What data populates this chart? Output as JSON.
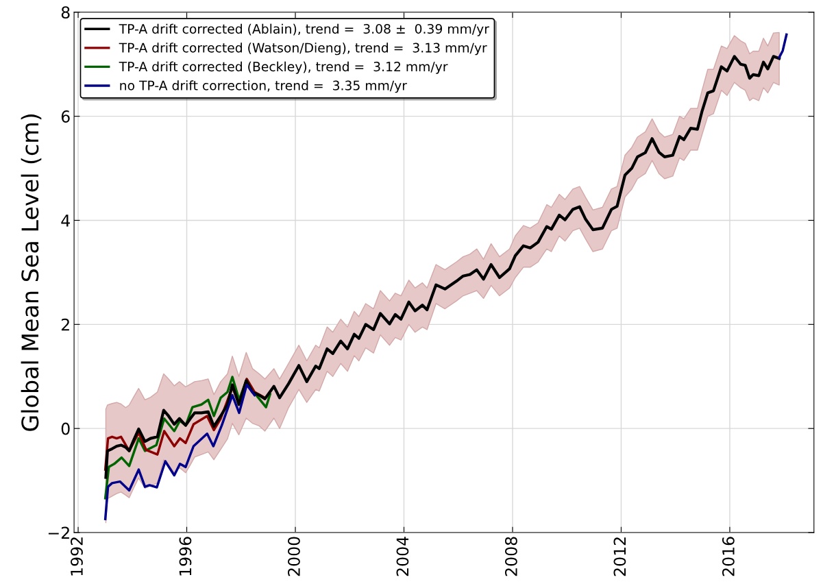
{
  "chart_data": {
    "type": "line",
    "ylabel": "Global Mean Sea Level (cm)",
    "xlim": [
      1991.85,
      2019.1
    ],
    "xticks": [
      1992,
      1996,
      2000,
      2004,
      2008,
      2012,
      2016
    ],
    "ylim": [
      -2,
      8
    ],
    "yticks": [
      {
        "value": -2,
        "label": "−2"
      },
      0,
      2,
      4,
      6,
      8
    ],
    "grid": true,
    "legend": "top left",
    "line_style": "solid",
    "marker": "none",
    "series": [
      {
        "name": "TP-A drift corrected (Ablain), trend =  3.08 ±  0.39 mm/yr",
        "color": "#000000",
        "x": [
          1993.02,
          1993.08,
          1993.25,
          1993.42,
          1993.58,
          1993.75,
          1993.88,
          1994.04,
          1994.23,
          1994.46,
          1994.67,
          1994.92,
          1995.15,
          1995.33,
          1995.54,
          1995.73,
          1995.96,
          1996.13,
          1996.29,
          1996.54,
          1996.79,
          1997.0,
          1997.25,
          1997.5,
          1997.68,
          1997.92,
          1998.19,
          1998.42,
          1998.67,
          1998.88,
          1999.21,
          1999.42,
          1999.75,
          2000.13,
          2000.42,
          2000.75,
          2000.88,
          2001.17,
          2001.38,
          2001.67,
          2001.92,
          2002.17,
          2002.34,
          2002.59,
          2002.88,
          2003.13,
          2003.47,
          2003.68,
          2003.89,
          2004.18,
          2004.41,
          2004.68,
          2004.85,
          2005.18,
          2005.51,
          2005.93,
          2006.18,
          2006.43,
          2006.68,
          2006.93,
          2007.21,
          2007.52,
          2007.89,
          2008.1,
          2008.4,
          2008.65,
          2008.94,
          2009.26,
          2009.43,
          2009.72,
          2009.93,
          2010.22,
          2010.47,
          2010.68,
          2010.96,
          2011.31,
          2011.64,
          2011.85,
          2012.14,
          2012.39,
          2012.6,
          2012.89,
          2013.14,
          2013.39,
          2013.6,
          2013.9,
          2014.15,
          2014.31,
          2014.56,
          2014.81,
          2014.98,
          2015.19,
          2015.4,
          2015.69,
          2015.9,
          2016.17,
          2016.4,
          2016.57,
          2016.73,
          2016.86,
          2017.07,
          2017.24,
          2017.4,
          2017.61,
          2017.82
        ],
        "values": [
          -0.94,
          -0.43,
          -0.39,
          -0.34,
          -0.32,
          -0.36,
          -0.43,
          -0.23,
          -0.01,
          -0.25,
          -0.19,
          -0.16,
          0.35,
          0.24,
          0.08,
          0.19,
          0.06,
          0.19,
          0.3,
          0.3,
          0.32,
          0.04,
          0.24,
          0.46,
          0.84,
          0.46,
          0.92,
          0.7,
          0.64,
          0.57,
          0.81,
          0.59,
          0.86,
          1.21,
          0.9,
          1.2,
          1.15,
          1.53,
          1.44,
          1.68,
          1.53,
          1.81,
          1.73,
          2.0,
          1.9,
          2.21,
          2.01,
          2.19,
          2.1,
          2.43,
          2.26,
          2.37,
          2.28,
          2.76,
          2.68,
          2.83,
          2.93,
          2.96,
          3.05,
          2.87,
          3.15,
          2.9,
          3.07,
          3.32,
          3.51,
          3.47,
          3.58,
          3.88,
          3.83,
          4.1,
          4.01,
          4.21,
          4.26,
          4.03,
          3.82,
          3.85,
          4.21,
          4.27,
          4.87,
          5.0,
          5.22,
          5.3,
          5.57,
          5.31,
          5.22,
          5.25,
          5.61,
          5.55,
          5.77,
          5.75,
          6.1,
          6.45,
          6.49,
          6.95,
          6.87,
          7.15,
          7.0,
          6.98,
          6.73,
          6.8,
          6.78,
          7.04,
          6.91,
          7.15,
          7.11
        ],
        "lower": [
          -1.81,
          -1.35,
          -1.3,
          -1.25,
          -1.22,
          -1.28,
          -1.33,
          -1.15,
          -0.95,
          -1.15,
          -1.1,
          -1.05,
          -0.6,
          -0.7,
          -0.85,
          -0.75,
          -0.85,
          -0.7,
          -0.55,
          -0.5,
          -0.45,
          -0.6,
          -0.4,
          -0.2,
          0.1,
          -0.12,
          0.2,
          0.1,
          0.05,
          -0.05,
          0.2,
          0.0,
          0.4,
          0.75,
          0.5,
          0.75,
          0.72,
          1.1,
          1.0,
          1.25,
          1.1,
          1.4,
          1.3,
          1.55,
          1.45,
          1.8,
          1.6,
          1.75,
          1.7,
          2.0,
          1.85,
          1.95,
          1.9,
          2.4,
          2.3,
          2.45,
          2.55,
          2.6,
          2.65,
          2.5,
          2.75,
          2.55,
          2.7,
          2.9,
          3.1,
          3.1,
          3.2,
          3.45,
          3.4,
          3.7,
          3.6,
          3.8,
          3.85,
          3.65,
          3.4,
          3.45,
          3.8,
          3.85,
          4.45,
          4.6,
          4.8,
          4.9,
          5.15,
          4.9,
          4.8,
          4.85,
          5.2,
          5.15,
          5.35,
          5.35,
          5.65,
          6.0,
          6.05,
          6.5,
          6.4,
          6.65,
          6.55,
          6.5,
          6.3,
          6.35,
          6.3,
          6.55,
          6.45,
          6.65,
          6.6
        ],
        "upper": [
          0.37,
          0.45,
          0.48,
          0.5,
          0.47,
          0.4,
          0.45,
          0.6,
          0.77,
          0.55,
          0.6,
          0.7,
          1.05,
          0.95,
          0.82,
          0.9,
          0.8,
          0.85,
          0.9,
          0.92,
          0.95,
          0.65,
          0.9,
          1.05,
          1.39,
          1.0,
          1.46,
          1.15,
          1.05,
          0.95,
          1.15,
          0.95,
          1.25,
          1.6,
          1.3,
          1.6,
          1.55,
          1.95,
          1.85,
          2.1,
          1.95,
          2.25,
          2.15,
          2.4,
          2.3,
          2.65,
          2.45,
          2.6,
          2.55,
          2.85,
          2.7,
          2.8,
          2.7,
          3.15,
          3.05,
          3.2,
          3.3,
          3.35,
          3.45,
          3.25,
          3.55,
          3.3,
          3.45,
          3.7,
          3.9,
          3.85,
          3.95,
          4.3,
          4.25,
          4.5,
          4.4,
          4.6,
          4.65,
          4.45,
          4.2,
          4.25,
          4.6,
          4.65,
          5.25,
          5.4,
          5.6,
          5.7,
          5.95,
          5.7,
          5.6,
          5.65,
          6.0,
          5.95,
          6.15,
          6.15,
          6.5,
          6.9,
          6.9,
          7.35,
          7.3,
          7.55,
          7.45,
          7.4,
          7.2,
          7.25,
          7.25,
          7.5,
          7.35,
          7.6,
          7.61
        ]
      },
      {
        "name": "TP-A drift corrected (Watson/Dieng), trend =  3.13 mm/yr",
        "color": "#8b0000",
        "x": [
          1993.0,
          1993.1,
          1993.25,
          1993.42,
          1993.58,
          1993.88,
          1994.23,
          1994.5,
          1994.92,
          1995.17,
          1995.54,
          1995.75,
          1995.96,
          1996.25,
          1996.75,
          1997.0,
          1997.25,
          1997.68,
          1997.93,
          1998.21,
          1998.5,
          1998.88
        ],
        "values": [
          -0.79,
          -0.19,
          -0.16,
          -0.19,
          -0.16,
          -0.43,
          -0.08,
          -0.41,
          -0.5,
          -0.05,
          -0.34,
          -0.19,
          -0.28,
          0.08,
          0.24,
          -0.03,
          0.19,
          0.79,
          0.48,
          0.95,
          0.7,
          0.59
        ]
      },
      {
        "name": "TP-A drift corrected (Beckley), trend =  3.12 mm/yr",
        "color": "#006400",
        "x": [
          1993.0,
          1993.13,
          1993.33,
          1993.6,
          1993.88,
          1994.23,
          1994.46,
          1994.88,
          1995.17,
          1995.54,
          1995.75,
          1995.96,
          1996.21,
          1996.54,
          1996.79,
          1997.0,
          1997.25,
          1997.5,
          1997.68,
          1997.93,
          1998.21,
          1998.5,
          1998.92,
          1999.07
        ],
        "values": [
          -1.34,
          -0.74,
          -0.68,
          -0.56,
          -0.72,
          -0.19,
          -0.43,
          -0.32,
          0.19,
          -0.05,
          0.15,
          0.06,
          0.41,
          0.46,
          0.55,
          0.24,
          0.59,
          0.7,
          0.99,
          0.55,
          0.95,
          0.68,
          0.41,
          0.66
        ]
      },
      {
        "name": "no TP-A drift correction, trend =  3.35 mm/yr",
        "color": "#00008b",
        "x": [
          1993.0,
          1993.1,
          1993.25,
          1993.54,
          1993.88,
          1994.23,
          1994.46,
          1994.63,
          1994.9,
          1995.21,
          1995.54,
          1995.75,
          1995.96,
          1996.25,
          1996.75,
          1996.98,
          1997.29,
          1997.68,
          1997.93,
          1998.21,
          1998.5,
          2008.0,
          2017.82,
          2017.95,
          2018.09
        ],
        "values": [
          -1.74,
          -1.12,
          -1.05,
          -1.02,
          -1.19,
          -0.79,
          -1.12,
          -1.09,
          -1.13,
          -0.63,
          -0.9,
          -0.68,
          -0.74,
          -0.34,
          -0.1,
          -0.34,
          0.06,
          0.64,
          0.3,
          0.84,
          0.64,
          null,
          7.13,
          7.26,
          7.57
        ]
      }
    ]
  }
}
